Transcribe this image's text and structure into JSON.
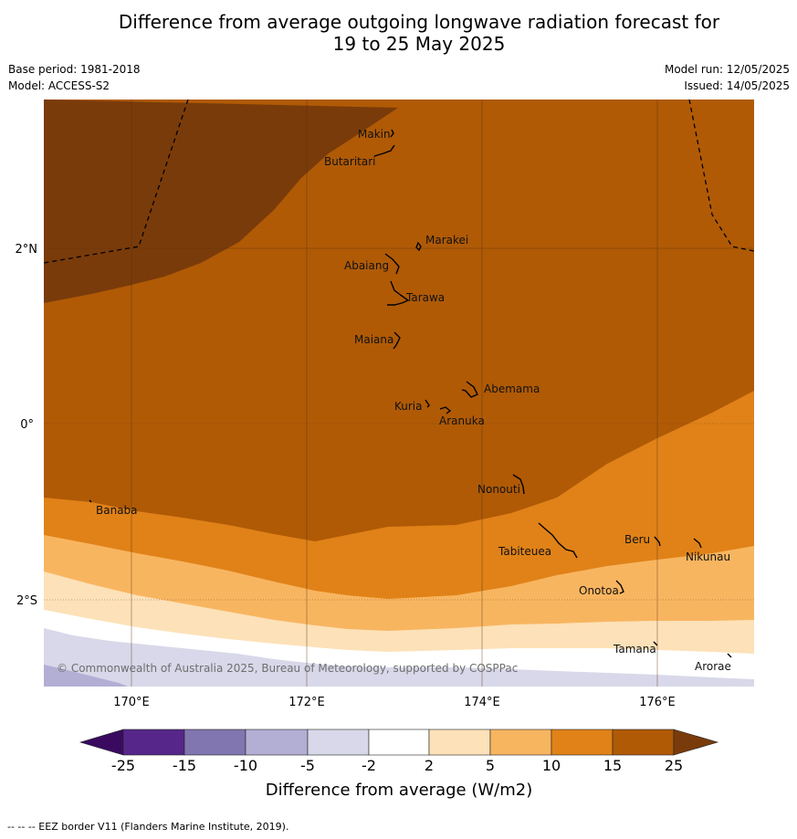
{
  "title": {
    "line1": "Difference from average outgoing longwave radiation forecast for",
    "line2": "19 to 25 May 2025"
  },
  "info": {
    "base_period": "Base period: 1981-2018",
    "model": "Model: ACCESS-S2",
    "model_run": "Model run: 12/05/2025",
    "issued": "Issued: 14/05/2025"
  },
  "map": {
    "lat_labels": [
      "2°N",
      "0°",
      "2°S"
    ],
    "lon_labels": [
      "170°E",
      "172°E",
      "174°E",
      "176°E"
    ],
    "islands": [
      {
        "name": "Makin"
      },
      {
        "name": "Butaritari"
      },
      {
        "name": "Marakei"
      },
      {
        "name": "Abaiang"
      },
      {
        "name": "Tarawa"
      },
      {
        "name": "Maiana"
      },
      {
        "name": "Abemama"
      },
      {
        "name": "Kuria"
      },
      {
        "name": "Aranuka"
      },
      {
        "name": "Nonouti"
      },
      {
        "name": "Banaba"
      },
      {
        "name": "Beru"
      },
      {
        "name": "Tabiteuea"
      },
      {
        "name": "Nikunau"
      },
      {
        "name": "Onotoa"
      },
      {
        "name": "Tamana"
      },
      {
        "name": "Arorae"
      }
    ],
    "copyright": "© Commonwealth of Australia 2025, Bureau of Meteorology, supported by COSPPac",
    "colors": {
      "gt25": "#7a3b0a",
      "15to25": "#b05a06",
      "10to15": "#e08218",
      "5to10": "#f8b560",
      "2to5": "#fde1b8",
      "m2to2": "#ffffff",
      "m5tom2": "#d8d8ea",
      "m10tom5": "#b3aed4",
      "m15tom10": "#8276b0",
      "m25tom15": "#56268a",
      "ltm25": "#3a0a60"
    }
  },
  "colorbar": {
    "ticks": [
      "-25",
      "-15",
      "-10",
      "-5",
      "-2",
      "2",
      "5",
      "10",
      "15",
      "25"
    ],
    "label": "Difference from average (W/m2)"
  },
  "footer": "--  --  -- EEZ border V11 (Flanders Marine Institute, 2019)."
}
